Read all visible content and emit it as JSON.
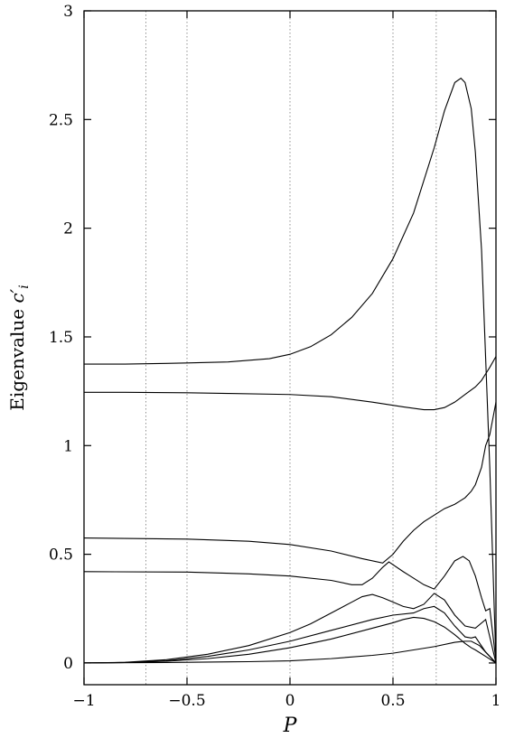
{
  "chart_data": {
    "type": "line",
    "title": "",
    "xlabel": "P",
    "ylabel": "Eigenvalue c'_i",
    "xlim": [
      -1,
      1
    ],
    "ylim": [
      -0.1,
      3
    ],
    "xticks": [
      -1,
      -0.5,
      0,
      0.5,
      1
    ],
    "xtick_labels": [
      "−1",
      "−0.5",
      "0",
      "0.5",
      "1"
    ],
    "yticks": [
      0,
      0.5,
      1,
      1.5,
      2,
      2.5,
      3
    ],
    "ytick_labels": [
      "0",
      "0.5",
      "1",
      "1.5",
      "2",
      "2.5",
      "3"
    ],
    "vertical_reference_lines": [
      -0.7,
      -0.5,
      0,
      0.5,
      0.71
    ],
    "grid": false,
    "series": [
      {
        "x": [
          -1,
          -0.8,
          -0.6,
          -0.5,
          -0.3,
          -0.1,
          0,
          0.1,
          0.2,
          0.3,
          0.4,
          0.5,
          0.6,
          0.7,
          0.75,
          0.8,
          0.83,
          0.85,
          0.88,
          0.9,
          0.93,
          0.95,
          0.97,
          1.0
        ],
        "values": [
          1.375,
          1.375,
          1.378,
          1.38,
          1.385,
          1.4,
          1.42,
          1.455,
          1.51,
          1.59,
          1.7,
          1.86,
          2.07,
          2.37,
          2.54,
          2.67,
          2.69,
          2.67,
          2.55,
          2.35,
          1.9,
          1.4,
          0.9,
          0.0
        ]
      },
      {
        "x": [
          -1,
          -0.8,
          -0.5,
          -0.3,
          0,
          0.2,
          0.4,
          0.55,
          0.65,
          0.7,
          0.75,
          0.8,
          0.85,
          0.9,
          0.93,
          0.95,
          0.97,
          1.0
        ],
        "values": [
          1.245,
          1.245,
          1.243,
          1.24,
          1.235,
          1.225,
          1.2,
          1.178,
          1.165,
          1.165,
          1.175,
          1.2,
          1.235,
          1.27,
          1.3,
          1.33,
          1.36,
          1.41
        ]
      },
      {
        "x": [
          -1,
          -0.5,
          -0.2,
          0,
          0.2,
          0.35,
          0.45,
          0.5,
          0.55,
          0.6,
          0.65,
          0.7,
          0.75,
          0.8,
          0.85,
          0.88,
          0.9,
          0.93,
          0.95,
          0.97,
          0.99,
          1.0
        ],
        "values": [
          0.575,
          0.57,
          0.56,
          0.545,
          0.515,
          0.48,
          0.46,
          0.5,
          0.56,
          0.61,
          0.65,
          0.68,
          0.71,
          0.73,
          0.76,
          0.79,
          0.82,
          0.9,
          1.0,
          1.05,
          1.15,
          1.2
        ]
      },
      {
        "x": [
          -1,
          -0.5,
          -0.2,
          0,
          0.2,
          0.3,
          0.35,
          0.4,
          0.45,
          0.48,
          0.55,
          0.6,
          0.65,
          0.7,
          0.75,
          0.8,
          0.84,
          0.87,
          0.9,
          0.93,
          0.95,
          0.97,
          1.0
        ],
        "values": [
          0.42,
          0.418,
          0.41,
          0.4,
          0.38,
          0.36,
          0.36,
          0.39,
          0.44,
          0.465,
          0.42,
          0.39,
          0.36,
          0.34,
          0.4,
          0.47,
          0.49,
          0.47,
          0.4,
          0.3,
          0.24,
          0.25,
          0.01
        ]
      },
      {
        "x": [
          -1,
          -0.8,
          -0.6,
          -0.4,
          -0.2,
          0,
          0.1,
          0.2,
          0.3,
          0.35,
          0.4,
          0.45,
          0.5,
          0.55,
          0.6,
          0.65,
          0.7,
          0.75,
          0.8,
          0.85,
          0.9,
          0.95,
          1.0
        ],
        "values": [
          0.0,
          0.003,
          0.015,
          0.04,
          0.08,
          0.14,
          0.18,
          0.23,
          0.28,
          0.305,
          0.315,
          0.3,
          0.28,
          0.26,
          0.25,
          0.27,
          0.32,
          0.29,
          0.22,
          0.17,
          0.16,
          0.2,
          0.0
        ]
      },
      {
        "x": [
          -1,
          -0.8,
          -0.6,
          -0.4,
          -0.2,
          0,
          0.2,
          0.4,
          0.5,
          0.6,
          0.65,
          0.7,
          0.75,
          0.8,
          0.85,
          0.88,
          0.9,
          0.95,
          1.0
        ],
        "values": [
          0.0,
          0.002,
          0.01,
          0.03,
          0.06,
          0.1,
          0.15,
          0.2,
          0.22,
          0.23,
          0.25,
          0.26,
          0.23,
          0.17,
          0.12,
          0.115,
          0.12,
          0.05,
          0.0
        ]
      },
      {
        "x": [
          -1,
          -0.8,
          -0.6,
          -0.4,
          -0.2,
          0,
          0.2,
          0.4,
          0.5,
          0.55,
          0.6,
          0.65,
          0.7,
          0.75,
          0.8,
          0.85,
          0.88,
          0.9,
          0.95,
          1.0
        ],
        "values": [
          0.0,
          0.002,
          0.008,
          0.02,
          0.04,
          0.07,
          0.11,
          0.16,
          0.185,
          0.2,
          0.21,
          0.205,
          0.19,
          0.165,
          0.13,
          0.09,
          0.07,
          0.06,
          0.03,
          0.0
        ]
      },
      {
        "x": [
          -1,
          -0.6,
          -0.2,
          0,
          0.2,
          0.4,
          0.5,
          0.6,
          0.7,
          0.8,
          0.85,
          0.88,
          0.92,
          0.96,
          1.0
        ],
        "values": [
          0.0,
          0.002,
          0.006,
          0.01,
          0.02,
          0.035,
          0.045,
          0.06,
          0.075,
          0.095,
          0.1,
          0.1,
          0.08,
          0.04,
          0.0
        ]
      }
    ]
  }
}
